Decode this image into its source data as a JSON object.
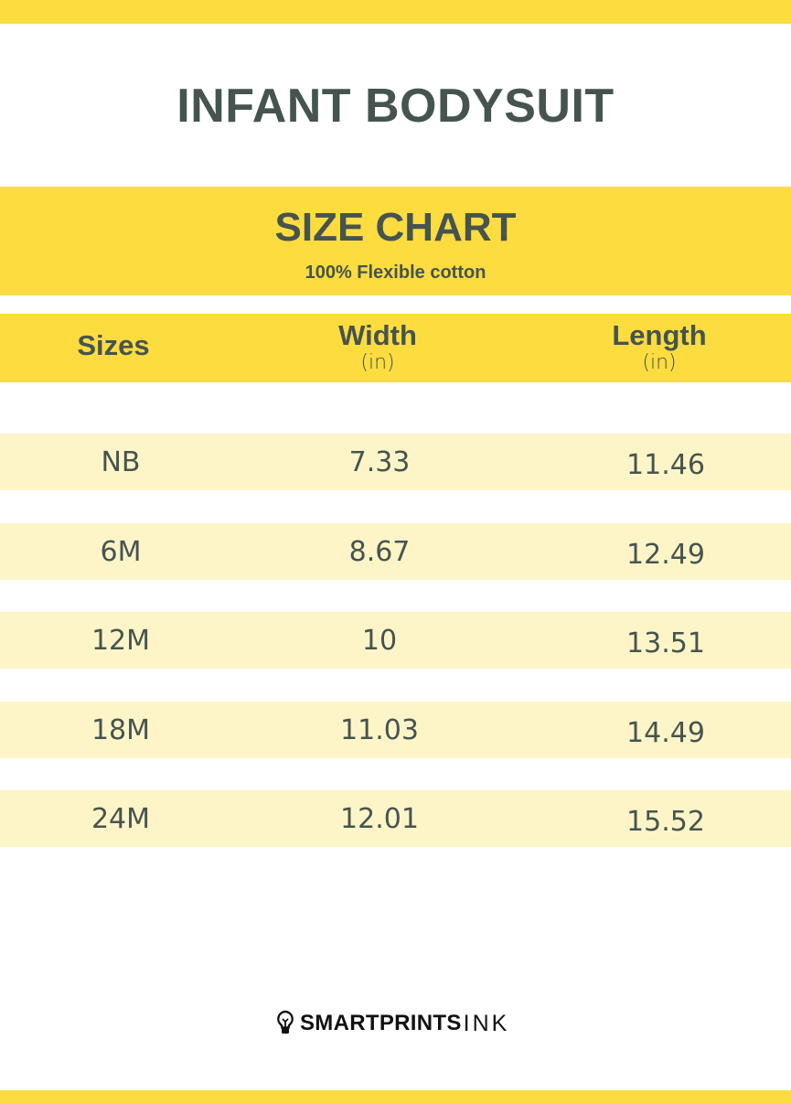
{
  "title": "INFANT BODYSUIT",
  "subtitle_band": {
    "heading": "SIZE CHART",
    "material": "100% Flexible cotton"
  },
  "table": {
    "headers": [
      {
        "label": "Sizes",
        "unit": ""
      },
      {
        "label": "Width",
        "unit": "(in)"
      },
      {
        "label": "Length",
        "unit": "(in)"
      }
    ],
    "rows": [
      [
        "NB",
        "7.33",
        "11.46"
      ],
      [
        "6M",
        "8.67",
        "12.49"
      ],
      [
        "12M",
        "10",
        "13.51"
      ],
      [
        "18M",
        "11.03",
        "14.49"
      ],
      [
        "24M",
        "12.01",
        "15.52"
      ]
    ]
  },
  "brand": {
    "bold": "SMARTPRINTS",
    "thin": "INK",
    "icon": "lightbulb-icon"
  },
  "colors": {
    "accent": "#fddc3f",
    "row": "#fdf5c8",
    "text": "#46544f"
  }
}
